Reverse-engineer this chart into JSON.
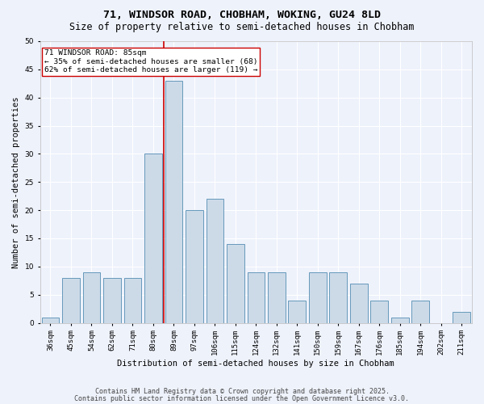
{
  "title1": "71, WINDSOR ROAD, CHOBHAM, WOKING, GU24 8LD",
  "title2": "Size of property relative to semi-detached houses in Chobham",
  "xlabel": "Distribution of semi-detached houses by size in Chobham",
  "ylabel": "Number of semi-detached properties",
  "categories": [
    "36sqm",
    "45sqm",
    "54sqm",
    "62sqm",
    "71sqm",
    "80sqm",
    "89sqm",
    "97sqm",
    "106sqm",
    "115sqm",
    "124sqm",
    "132sqm",
    "141sqm",
    "150sqm",
    "159sqm",
    "167sqm",
    "176sqm",
    "185sqm",
    "194sqm",
    "202sqm",
    "211sqm"
  ],
  "values": [
    1,
    8,
    9,
    8,
    8,
    30,
    43,
    20,
    22,
    14,
    9,
    9,
    4,
    9,
    9,
    7,
    4,
    1,
    4,
    0,
    2
  ],
  "bar_color": "#ccdae8",
  "bar_edge_color": "#6699bb",
  "property_line_x": 6.0,
  "annotation_text": "71 WINDSOR ROAD: 85sqm\n← 35% of semi-detached houses are smaller (68)\n62% of semi-detached houses are larger (119) →",
  "annotation_box_color": "#ffffff",
  "annotation_box_edge_color": "#cc0000",
  "footer1": "Contains HM Land Registry data © Crown copyright and database right 2025.",
  "footer2": "Contains public sector information licensed under the Open Government Licence v3.0.",
  "background_color": "#eef2fb",
  "grid_color": "#ffffff",
  "ylim": [
    0,
    50
  ],
  "yticks": [
    0,
    5,
    10,
    15,
    20,
    25,
    30,
    35,
    40,
    45,
    50
  ],
  "red_line_color": "#cc0000",
  "title_fontsize": 9.5,
  "subtitle_fontsize": 8.5,
  "label_fontsize": 7.5,
  "tick_fontsize": 6.5,
  "annotation_fontsize": 6.8,
  "footer_fontsize": 6.0
}
